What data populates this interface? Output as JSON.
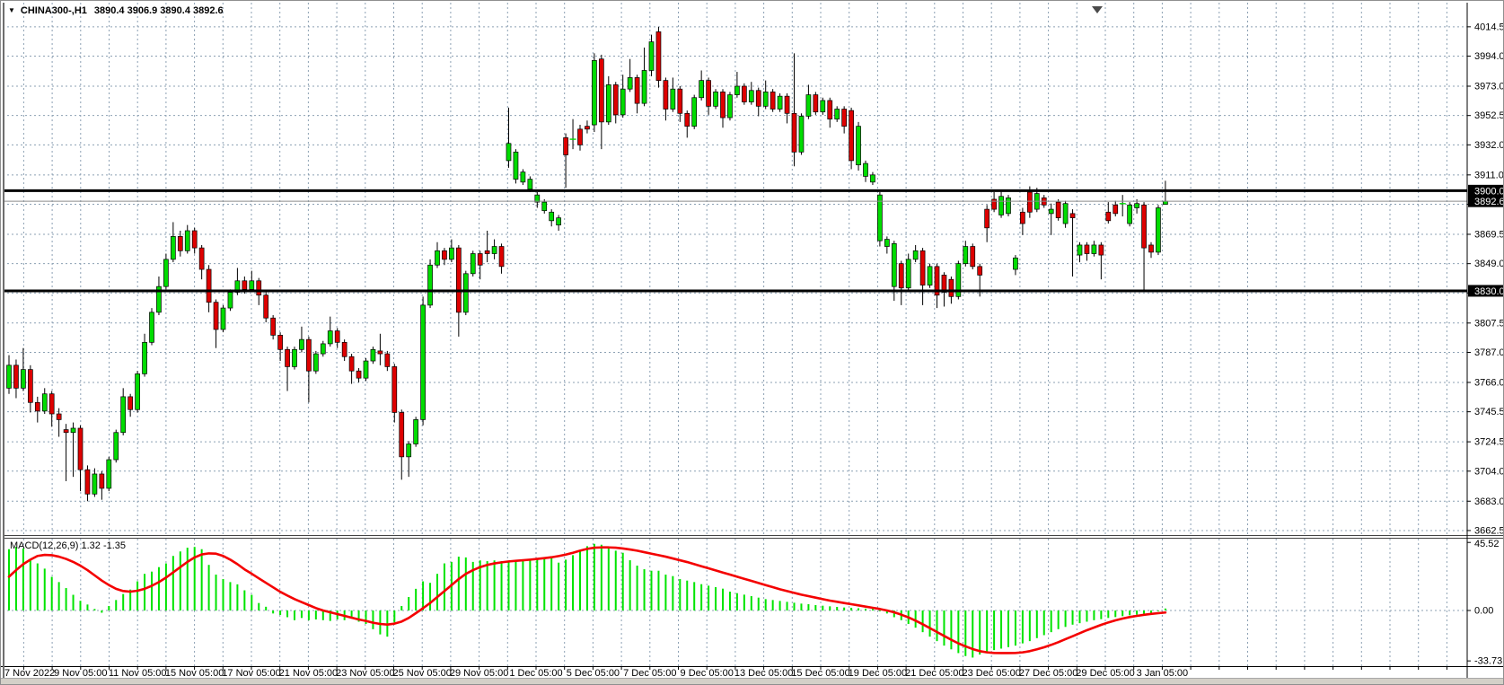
{
  "window": {
    "title_symbol": "CHINA300-,H1",
    "title_ohlc": "3890.4 3906.9 3890.4 3892.6"
  },
  "indicator": {
    "label": "MACD(12,26,9)",
    "values": "1.32 -1.35"
  },
  "colors": {
    "background": "#ffffff",
    "grid": "#8ca0b3",
    "bull": "#00dc00",
    "bear": "#de0000",
    "wick": "#000000",
    "macd_hist": "#00e400",
    "macd_signal": "#f40000",
    "level_line": "#000000",
    "current_price_line": "#8c8c8c",
    "tag_bg": "#000000",
    "tag_text": "#ffffff",
    "axis_text": "#000000",
    "panel_border": "#444444",
    "window_strip": "#d4d0c8"
  },
  "chart_data": {
    "type": "candlestick",
    "symbol": "CHINA300-",
    "timeframe": "H1",
    "title": "CHINA300-,H1 3890.4 3906.9 3890.4 3892.6",
    "ohlc_current": {
      "open": 3890.4,
      "high": 3906.9,
      "low": 3890.4,
      "close": 3892.6
    },
    "grid": true,
    "legend_position": "top-left",
    "price_axis_labels": [
      {
        "p": 4014.5,
        "t": "4014.5"
      },
      {
        "p": 3994.0,
        "t": "3994.0"
      },
      {
        "p": 3973.0,
        "t": "3973.0"
      },
      {
        "p": 3952.5,
        "t": "3952.5"
      },
      {
        "p": 3932.0,
        "t": "3932.0"
      },
      {
        "p": 3911.0,
        "t": "3911.0"
      },
      {
        "p": 3890.5,
        "t": "3890.5",
        "hidden": true
      },
      {
        "p": 3869.5,
        "t": "3869.5"
      },
      {
        "p": 3849.0,
        "t": "3849.0"
      },
      {
        "p": 3828.5,
        "t": "3828.5",
        "hidden": true
      },
      {
        "p": 3807.5,
        "t": "3807.5"
      },
      {
        "p": 3787.0,
        "t": "3787.0"
      },
      {
        "p": 3766.0,
        "t": "3766.0"
      },
      {
        "p": 3745.5,
        "t": "3745.5"
      },
      {
        "p": 3724.5,
        "t": "3724.5"
      },
      {
        "p": 3704.0,
        "t": "3704.0"
      },
      {
        "p": 3683.0,
        "t": "3683.0"
      },
      {
        "p": 3662.5,
        "t": "3662.5"
      }
    ],
    "time_axis_labels": [
      "7 Nov 2022",
      "9 Nov 05:00",
      "11 Nov 05:00",
      "15 Nov 05:00",
      "17 Nov 05:00",
      "21 Nov 05:00",
      "23 Nov 05:00",
      "25 Nov 05:00",
      "29 Nov 05:00",
      "1 Dec 05:00",
      "5 Dec 05:00",
      "7 Dec 05:00",
      "9 Dec 05:00",
      "13 Dec 05:00",
      "15 Dec 05:00",
      "19 Dec 05:00",
      "21 Dec 05:00",
      "23 Dec 05:00",
      "27 Dec 05:00",
      "29 Dec 05:00",
      "3 Jan 05:00"
    ],
    "horizontal_levels": [
      {
        "price": 3900.0,
        "tag": "3900.0"
      },
      {
        "price": 3830.0,
        "tag": "3830.0"
      }
    ],
    "current_price": {
      "price": 3892.6,
      "tag": "3892.6"
    },
    "candles": [
      [
        3762,
        3785,
        3758,
        3778
      ],
      [
        3778,
        3782,
        3755,
        3762
      ],
      [
        3762,
        3790,
        3760,
        3775
      ],
      [
        3775,
        3778,
        3745,
        3752
      ],
      [
        3752,
        3756,
        3738,
        3746
      ],
      [
        3746,
        3762,
        3744,
        3758
      ],
      [
        3758,
        3760,
        3735,
        3744
      ],
      [
        3744,
        3748,
        3728,
        3740
      ],
      [
        3733,
        3737,
        3697,
        3731
      ],
      [
        3731,
        3738,
        3700,
        3734
      ],
      [
        3734,
        3736,
        3690,
        3705
      ],
      [
        3705,
        3708,
        3683,
        3688
      ],
      [
        3688,
        3706,
        3686,
        3702
      ],
      [
        3702,
        3704,
        3684,
        3692
      ],
      [
        3692,
        3714,
        3690,
        3712
      ],
      [
        3712,
        3733,
        3710,
        3731
      ],
      [
        3731,
        3762,
        3729,
        3756
      ],
      [
        3756,
        3758,
        3742,
        3747
      ],
      [
        3747,
        3774,
        3745,
        3772
      ],
      [
        3772,
        3800,
        3770,
        3794
      ],
      [
        3794,
        3818,
        3792,
        3815
      ],
      [
        3815,
        3840,
        3813,
        3833
      ],
      [
        3833,
        3856,
        3831,
        3852
      ],
      [
        3852,
        3878,
        3850,
        3868
      ],
      [
        3868,
        3872,
        3854,
        3858
      ],
      [
        3858,
        3876,
        3856,
        3872
      ],
      [
        3872,
        3874,
        3856,
        3860
      ],
      [
        3860,
        3862,
        3838,
        3845
      ],
      [
        3845,
        3848,
        3815,
        3822
      ],
      [
        3822,
        3824,
        3790,
        3803
      ],
      [
        3803,
        3820,
        3801,
        3818
      ],
      [
        3818,
        3831,
        3816,
        3829
      ],
      [
        3829,
        3846,
        3827,
        3837
      ],
      [
        3837,
        3840,
        3828,
        3831
      ],
      [
        3831,
        3844,
        3829,
        3837
      ],
      [
        3837,
        3839,
        3820,
        3827
      ],
      [
        3827,
        3829,
        3808,
        3811
      ],
      [
        3811,
        3813,
        3796,
        3799
      ],
      [
        3799,
        3801,
        3781,
        3789
      ],
      [
        3789,
        3791,
        3760,
        3777
      ],
      [
        3777,
        3791,
        3775,
        3789
      ],
      [
        3789,
        3805,
        3787,
        3796
      ],
      [
        3796,
        3798,
        3752,
        3774
      ],
      [
        3774,
        3788,
        3772,
        3786
      ],
      [
        3786,
        3795,
        3784,
        3793
      ],
      [
        3793,
        3812,
        3791,
        3802
      ],
      [
        3802,
        3804,
        3790,
        3794
      ],
      [
        3794,
        3796,
        3781,
        3784
      ],
      [
        3784,
        3786,
        3765,
        3774
      ],
      [
        3774,
        3776,
        3766,
        3769
      ],
      [
        3769,
        3783,
        3767,
        3781
      ],
      [
        3781,
        3791,
        3779,
        3789
      ],
      [
        3788,
        3800,
        3778,
        3786
      ],
      [
        3786,
        3788,
        3774,
        3777
      ],
      [
        3777,
        3779,
        3738,
        3745
      ],
      [
        3745,
        3747,
        3698,
        3714
      ],
      [
        3714,
        3725,
        3700,
        3723
      ],
      [
        3723,
        3742,
        3721,
        3740
      ],
      [
        3740,
        3826,
        3736,
        3820
      ],
      [
        3820,
        3852,
        3818,
        3848
      ],
      [
        3848,
        3864,
        3846,
        3858
      ],
      [
        3858,
        3860,
        3848,
        3852
      ],
      [
        3852,
        3866,
        3850,
        3860
      ],
      [
        3860,
        3862,
        3798,
        3815
      ],
      [
        3815,
        3844,
        3813,
        3842
      ],
      [
        3842,
        3858,
        3840,
        3856
      ],
      [
        3856,
        3858,
        3838,
        3848
      ],
      [
        3858,
        3872,
        3850,
        3856
      ],
      [
        3856,
        3866,
        3852,
        3861
      ],
      [
        3861,
        3863,
        3842,
        3847
      ],
      [
        3921,
        3958,
        3916,
        3933
      ],
      [
        3908,
        3929,
        3905,
        3927
      ],
      [
        3906,
        3915,
        3904,
        3913
      ],
      [
        3901,
        3910,
        3899,
        3908
      ],
      [
        3892,
        3899,
        3888,
        3897
      ],
      [
        3886,
        3894,
        3884,
        3892
      ],
      [
        3879,
        3887,
        3875,
        3885
      ],
      [
        3876,
        3883,
        3872,
        3881
      ],
      [
        3937,
        3940,
        3902,
        3925
      ],
      [
        3936,
        3950,
        3929,
        3936
      ],
      [
        3943,
        3946,
        3928,
        3932
      ],
      [
        3945,
        3949,
        3940,
        3943
      ],
      [
        3946,
        3996,
        3941,
        3991
      ],
      [
        3992,
        3995,
        3929,
        3948
      ],
      [
        3948,
        3980,
        3946,
        3974
      ],
      [
        3974,
        3976,
        3947,
        3953
      ],
      [
        3953,
        3981,
        3951,
        3971
      ],
      [
        3971,
        3992,
        3969,
        3979
      ],
      [
        3979,
        3981,
        3954,
        3961
      ],
      [
        3961,
        4000,
        3959,
        3984
      ],
      [
        3984,
        4009,
        3980,
        4004
      ],
      [
        4011,
        4014.5,
        3972,
        3977
      ],
      [
        3977,
        3979,
        3949,
        3957
      ],
      [
        3957,
        3979,
        3955,
        3971
      ],
      [
        3971,
        3973,
        3948,
        3954
      ],
      [
        3954,
        3956,
        3937,
        3945
      ],
      [
        3945,
        3967,
        3943,
        3965
      ],
      [
        3965,
        3984,
        3963,
        3977
      ],
      [
        3977,
        3979,
        3953,
        3959
      ],
      [
        3959,
        3971,
        3957,
        3969
      ],
      [
        3969,
        3971,
        3944,
        3951
      ],
      [
        3951,
        3969,
        3949,
        3967
      ],
      [
        3967,
        3983,
        3965,
        3973
      ],
      [
        3973,
        3975,
        3960,
        3962
      ],
      [
        3962,
        3976,
        3960,
        3970
      ],
      [
        3970,
        3972,
        3952,
        3959
      ],
      [
        3959,
        3977,
        3957,
        3969
      ],
      [
        3969,
        3971,
        3955,
        3957
      ],
      [
        3957,
        3968,
        3955,
        3966
      ],
      [
        3966,
        3968,
        3947,
        3954
      ],
      [
        3954,
        3996,
        3917,
        3927
      ],
      [
        3927,
        3954,
        3925,
        3952
      ],
      [
        3952,
        3974,
        3950,
        3967
      ],
      [
        3967,
        3969,
        3953,
        3955
      ],
      [
        3955,
        3965,
        3953,
        3963
      ],
      [
        3963,
        3965,
        3944,
        3950
      ],
      [
        3950,
        3959,
        3948,
        3957
      ],
      [
        3957,
        3959,
        3940,
        3945
      ],
      [
        3956,
        3958,
        3915,
        3921
      ],
      [
        3918,
        3948,
        3914,
        3945
      ],
      [
        3910,
        3921,
        3906,
        3919
      ],
      [
        3906,
        3913,
        3904,
        3911
      ],
      [
        3865,
        3899,
        3861,
        3897
      ],
      [
        3861,
        3868,
        3856,
        3866
      ],
      [
        3833,
        3865,
        3823,
        3863
      ],
      [
        3849,
        3851,
        3820,
        3832
      ],
      [
        3832,
        3856,
        3830,
        3852
      ],
      [
        3852,
        3862,
        3850,
        3858
      ],
      [
        3858,
        3860,
        3820,
        3834
      ],
      [
        3834,
        3849,
        3832,
        3847
      ],
      [
        3847,
        3849,
        3818,
        3827
      ],
      [
        3841,
        3843,
        3819,
        3829
      ],
      [
        3838,
        3840,
        3821,
        3826
      ],
      [
        3826,
        3851,
        3824,
        3849
      ],
      [
        3849,
        3865,
        3847,
        3861
      ],
      [
        3861,
        3863,
        3845,
        3847
      ],
      [
        3847,
        3849,
        3826,
        3841
      ],
      [
        3887,
        3890,
        3864,
        3874
      ],
      [
        3894,
        3899,
        3885,
        3887
      ],
      [
        3883,
        3900,
        3881,
        3896
      ],
      [
        3884,
        3897,
        3882,
        3895
      ],
      [
        3845,
        3855,
        3841,
        3853
      ],
      [
        3885,
        3888,
        3869,
        3877
      ],
      [
        3899,
        3903,
        3881,
        3885
      ],
      [
        3887,
        3902,
        3885,
        3898
      ],
      [
        3895,
        3897,
        3888,
        3890
      ],
      [
        3884,
        3891,
        3869,
        3887
      ],
      [
        3892,
        3894,
        3879,
        3881
      ],
      [
        3877,
        3893,
        3874,
        3891
      ],
      [
        3884,
        3887,
        3840,
        3881
      ],
      [
        3855,
        3864,
        3850,
        3862
      ],
      [
        3862,
        3864,
        3851,
        3856
      ],
      [
        3856,
        3865,
        3854,
        3862
      ],
      [
        3862,
        3864,
        3838,
        3855
      ],
      [
        3885,
        3892,
        3877,
        3879
      ],
      [
        3890,
        3893,
        3882,
        3884
      ],
      [
        3891,
        3897,
        3882,
        3891
      ],
      [
        3877,
        3892,
        3875,
        3890
      ],
      [
        3888,
        3894,
        3884,
        3891
      ],
      [
        3890,
        3892,
        3830,
        3860
      ],
      [
        3862,
        3864,
        3853,
        3857
      ],
      [
        3857,
        3890,
        3855,
        3888
      ],
      [
        3890.4,
        3906.9,
        3890.4,
        3892.6
      ]
    ],
    "macd": {
      "params": "12,26,9",
      "current_hist": 1.32,
      "current_signal": -1.35,
      "axis_labels": [
        {
          "v": 45.52,
          "t": "45.52"
        },
        {
          "v": 0.0,
          "t": "0.00"
        },
        {
          "v": -33.73,
          "t": "-33.73"
        }
      ],
      "histogram": [
        41,
        42.5,
        41.5,
        33.5,
        31.5,
        28,
        22.5,
        19,
        15,
        10.5,
        6.5,
        4,
        1,
        -1.5,
        3,
        7,
        11,
        14,
        19.5,
        24.5,
        26,
        29,
        31.5,
        36.5,
        39.5,
        42,
        42.5,
        41,
        30.5,
        24,
        21,
        19,
        17.5,
        13.5,
        10.5,
        5,
        2.5,
        -2,
        -3,
        -4.5,
        -6.5,
        -5,
        -6.5,
        -6,
        -6.5,
        -7,
        -6,
        -6.5,
        -5.5,
        -7.5,
        -9,
        -12.5,
        -16,
        -17.5,
        -8,
        3,
        9,
        14.5,
        19.5,
        18.5,
        24.5,
        31.5,
        32.5,
        36,
        35.5,
        32.5,
        33.5,
        33,
        33.5,
        33,
        33,
        33.5,
        34,
        34.5,
        35,
        35.5,
        36,
        32,
        34,
        37,
        40,
        43,
        44.6,
        44,
        42.6,
        40,
        38.6,
        33.6,
        30,
        27.6,
        26.6,
        26.6,
        24,
        23,
        21,
        20,
        19,
        17.6,
        16.6,
        15.6,
        14.6,
        12.6,
        11.6,
        10.6,
        9.6,
        8.6,
        7.6,
        7,
        6.4,
        5.8,
        5.2,
        4.6,
        4.2,
        3.6,
        3.2,
        2.8,
        2.4,
        2,
        1.8,
        1.5,
        1.2,
        1,
        -0.5,
        -2,
        -4.5,
        -6.5,
        -9,
        -11.5,
        -14.5,
        -17.5,
        -20.5,
        -23.5,
        -26,
        -28.5,
        -30.5,
        -31.5,
        -29.5,
        -27.5,
        -26.5,
        -25.5,
        -24.5,
        -23.5,
        -22,
        -20.5,
        -18.5,
        -16.5,
        -14.5,
        -12.5,
        -11,
        -9.5,
        -8.5,
        -7.5,
        -6.5,
        -5.8,
        -5,
        -4.4,
        -3.8,
        -3.2,
        -2.8,
        -2.2,
        -1.8,
        -0.5,
        1.32
      ],
      "signal": [
        22.6,
        27,
        31,
        34,
        36.5,
        37.2,
        37,
        36,
        34.5,
        32.5,
        30,
        27,
        23.5,
        20,
        17,
        14.5,
        13,
        12.6,
        13.2,
        14.5,
        16.5,
        19,
        22,
        25.5,
        29,
        32.5,
        35.5,
        37.5,
        38.2,
        38,
        36.5,
        34,
        31,
        27.5,
        24.6,
        21.5,
        18.5,
        15.5,
        12.5,
        10,
        7.6,
        5.6,
        3.6,
        1.6,
        0,
        -1.2,
        -2.4,
        -3.6,
        -4.8,
        -6,
        -7,
        -8.2,
        -9,
        -9.4,
        -8.8,
        -7.4,
        -5,
        -1.8,
        1.5,
        5,
        9,
        13,
        17,
        21,
        24.5,
        27,
        29,
        30.5,
        31.5,
        32.2,
        32.8,
        33.2,
        33.6,
        34,
        34.5,
        35,
        35.6,
        36.4,
        37.4,
        38.6,
        40,
        41.2,
        42,
        42.2,
        42.2,
        42,
        41.5,
        40.8,
        40,
        39,
        38,
        37,
        36,
        34.8,
        33.6,
        32.4,
        31,
        29.6,
        28.2,
        26.8,
        25.4,
        24,
        22.6,
        21.2,
        19.8,
        18.4,
        17,
        15.6,
        14.2,
        13,
        11.8,
        10.6,
        9.6,
        8.6,
        7.6,
        6.6,
        5.8,
        5,
        4.2,
        3.4,
        2.6,
        1.8,
        1,
        0,
        -1.2,
        -2.8,
        -4.6,
        -6.8,
        -9.2,
        -11.8,
        -14.4,
        -17,
        -19.6,
        -22,
        -24,
        -25.8,
        -27.2,
        -28,
        -28.4,
        -28.5,
        -28.5,
        -28.4,
        -28,
        -27.2,
        -26,
        -24.6,
        -23,
        -21.2,
        -19.2,
        -17.2,
        -15.2,
        -13.2,
        -11.4,
        -9.6,
        -8,
        -6.6,
        -5.4,
        -4.4,
        -3.6,
        -2.9,
        -2.3,
        -1.8,
        -1.35
      ]
    }
  }
}
